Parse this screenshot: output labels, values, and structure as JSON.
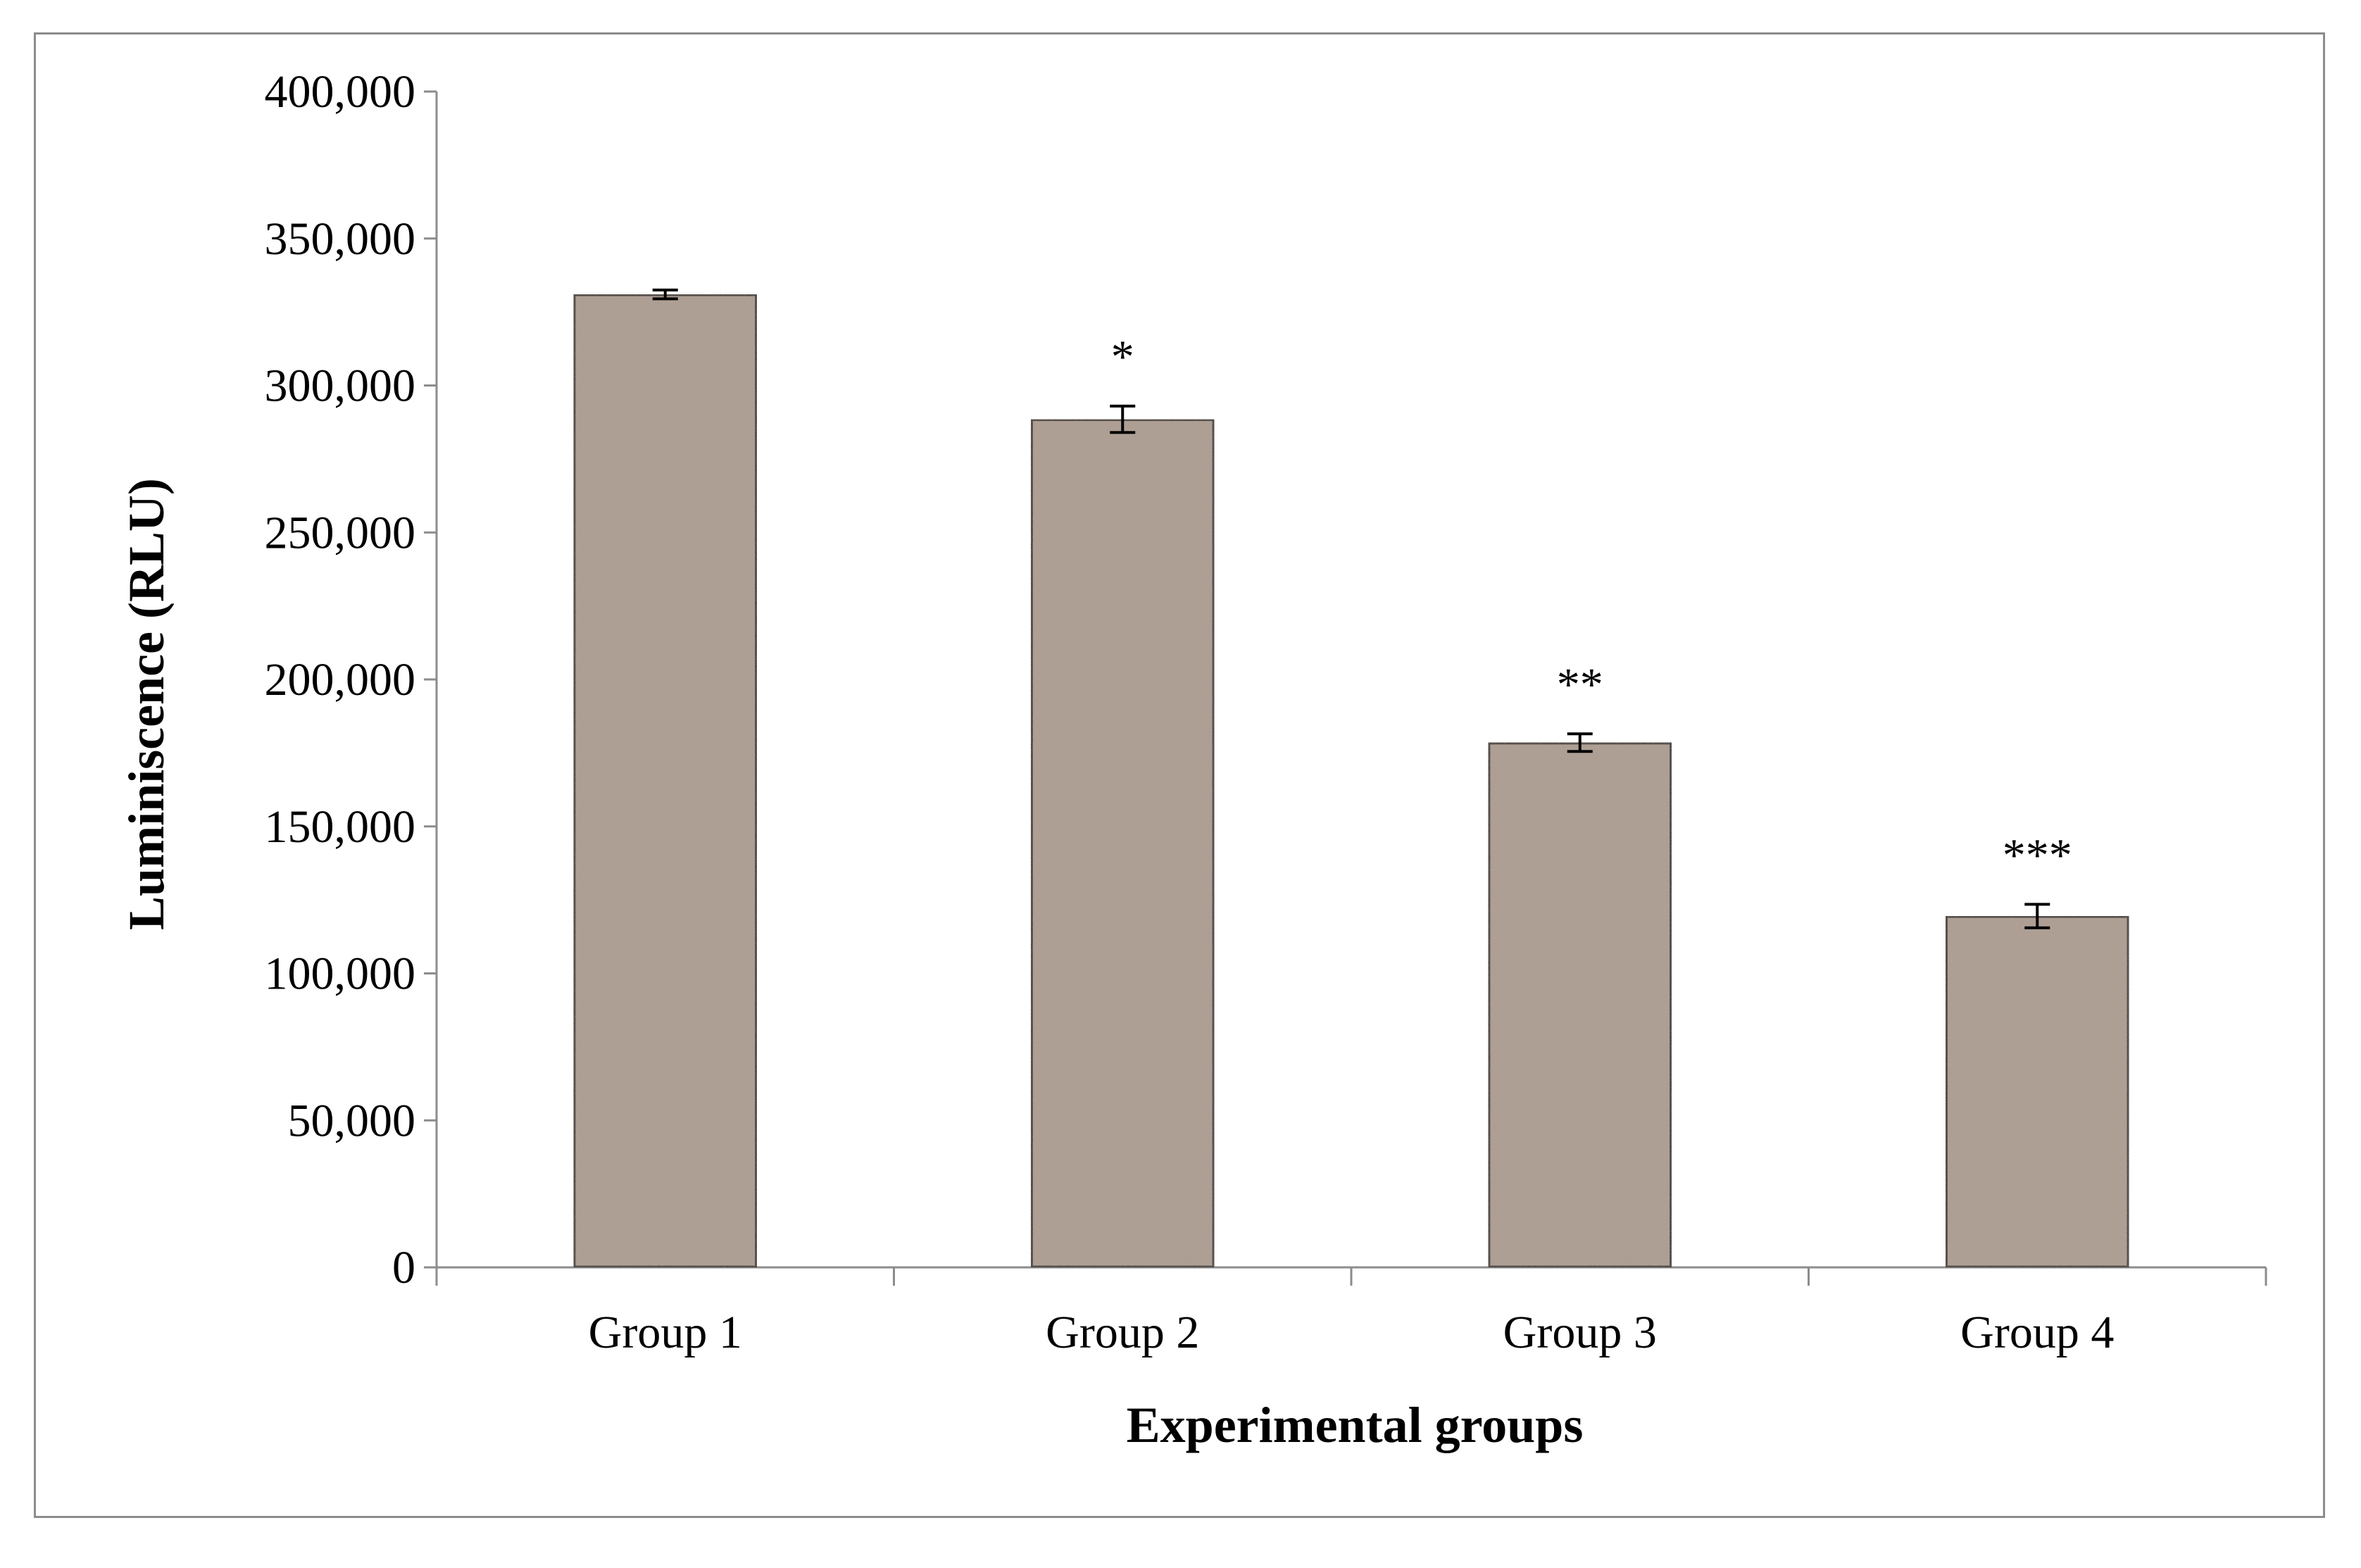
{
  "chart_data": {
    "type": "bar",
    "title": "",
    "xlabel": "Experimental groups",
    "ylabel": "Luminiscence (RLU)",
    "ylim": [
      0,
      400000
    ],
    "yticks": [
      0,
      50000,
      100000,
      150000,
      200000,
      250000,
      300000,
      350000,
      400000
    ],
    "ytick_labels": [
      "0",
      "50,000",
      "100,000",
      "150,000",
      "200,000",
      "250,000",
      "300,000",
      "350,000",
      "400,000"
    ],
    "categories": [
      "Group 1",
      "Group 2",
      "Group 3",
      "Group 4"
    ],
    "values": [
      331000,
      288500,
      178500,
      119500
    ],
    "errors": [
      1500,
      4500,
      3000,
      4000
    ],
    "significance": [
      "",
      "*",
      "**",
      "***"
    ],
    "bar_color": "#b3a397",
    "grid": false
  }
}
